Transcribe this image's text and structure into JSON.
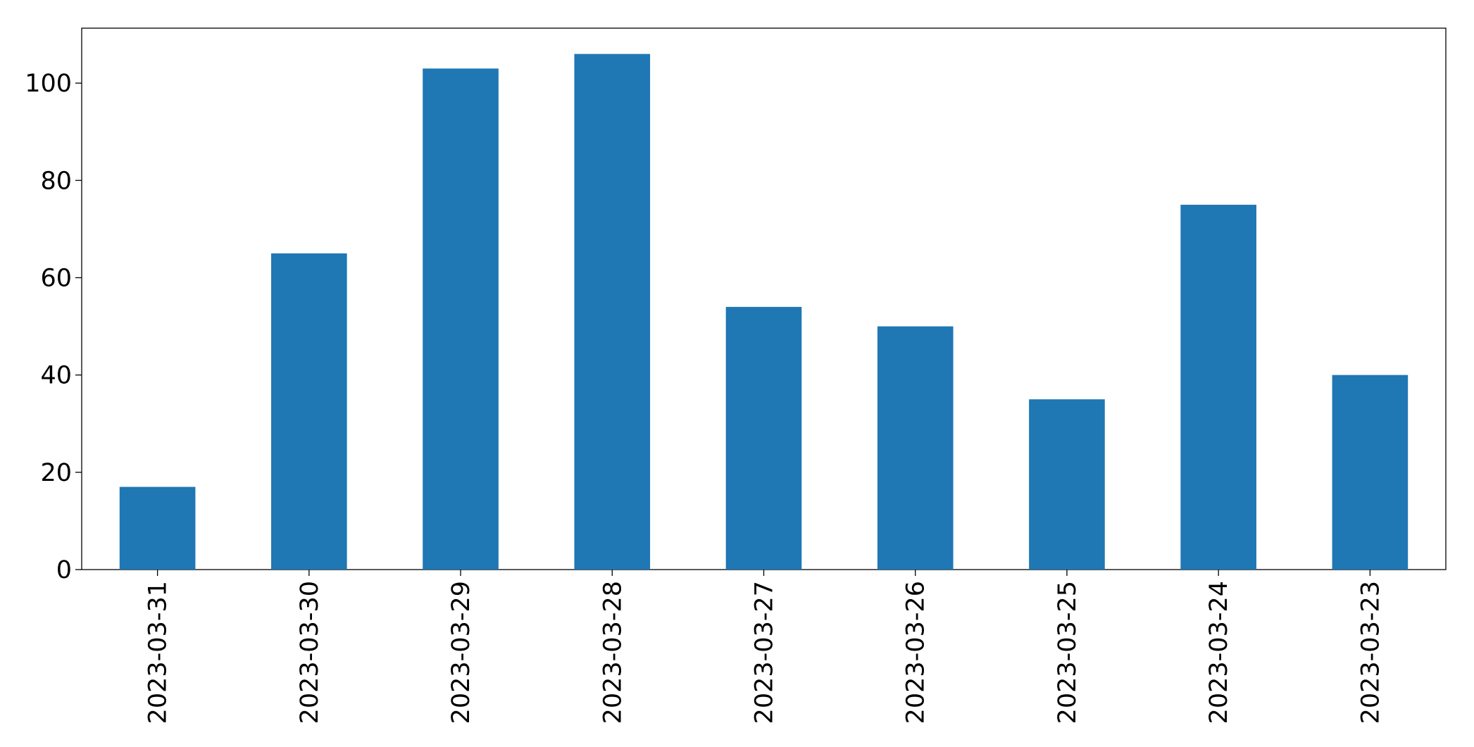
{
  "chart_data": {
    "type": "bar",
    "categories": [
      "2023-03-31",
      "2023-03-30",
      "2023-03-29",
      "2023-03-28",
      "2023-03-27",
      "2023-03-26",
      "2023-03-25",
      "2023-03-24",
      "2023-03-23"
    ],
    "values": [
      17,
      65,
      103,
      106,
      54,
      50,
      35,
      75,
      40
    ],
    "color": "#1f77b4",
    "ylim": [
      0,
      111.3
    ],
    "yticks": [
      0,
      20,
      40,
      60,
      80,
      100
    ],
    "grid": false
  }
}
